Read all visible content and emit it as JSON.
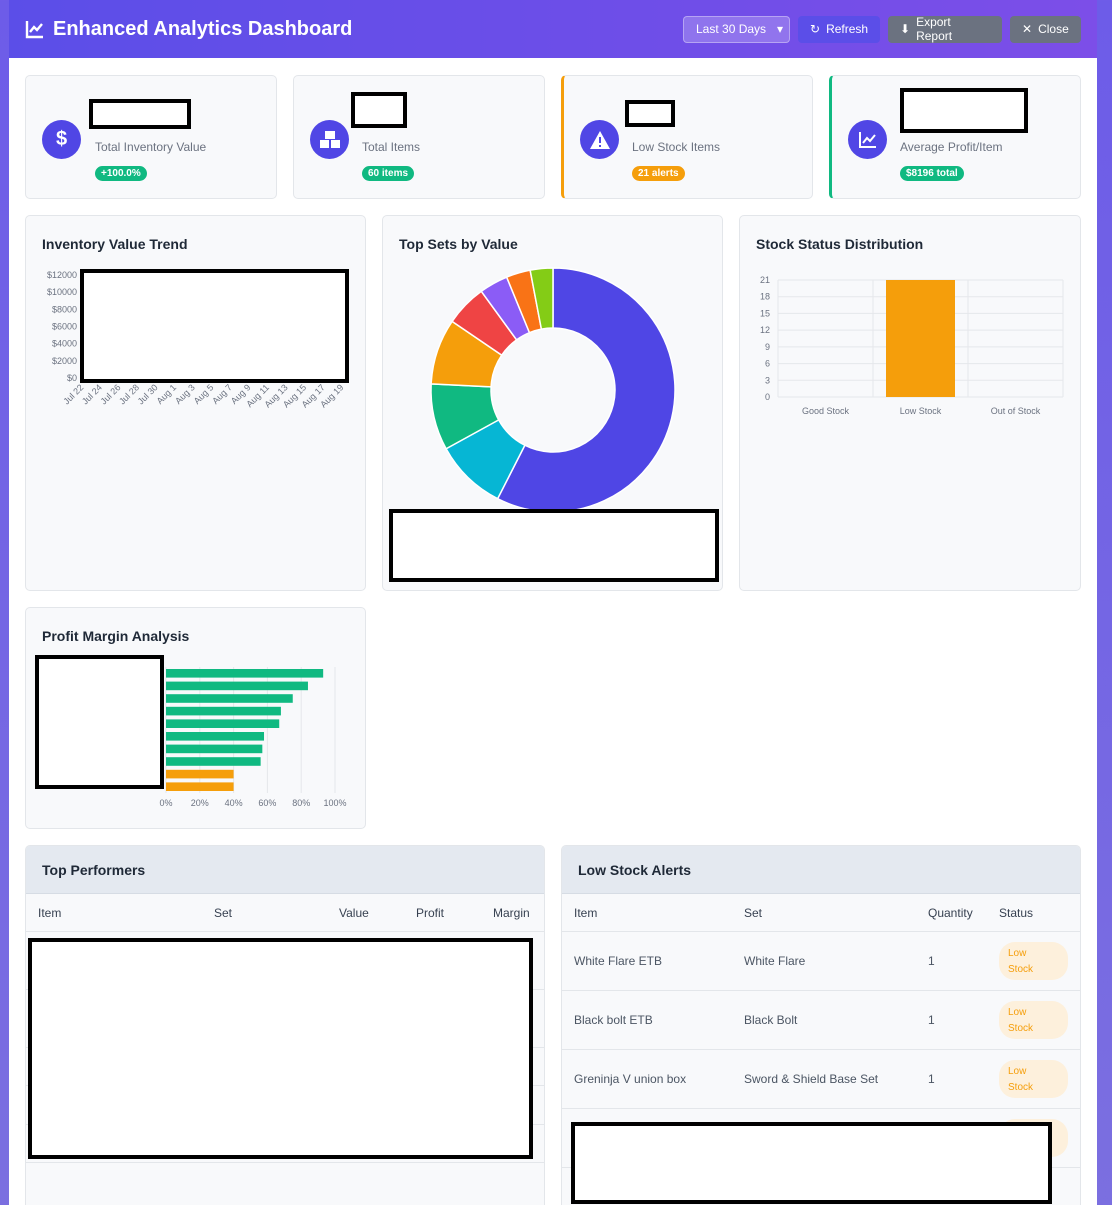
{
  "header": {
    "title": "Enhanced Analytics Dashboard",
    "range_select": "Last 30 Days",
    "refresh_label": "Refresh",
    "export_label": "Export Report",
    "close_label": "Close"
  },
  "stats": [
    {
      "label": "Total Inventory Value",
      "badge": "+100.0%",
      "icon": "dollar-icon"
    },
    {
      "label": "Total Items",
      "badge": "60 items",
      "icon": "boxes-icon"
    },
    {
      "label": "Low Stock Items",
      "badge": "21 alerts",
      "icon": "warning-icon"
    },
    {
      "label": "Average Profit/Item",
      "badge": "$8196 total",
      "icon": "chart-line-icon"
    }
  ],
  "colors": {
    "accent": "#5046e5",
    "green": "#10b981",
    "orange": "#f59e0b"
  },
  "chart_data": [
    {
      "type": "line",
      "title": "Inventory Value Trend",
      "y_ticks": [
        "$12000",
        "$10000",
        "$8000",
        "$6000",
        "$4000",
        "$2000",
        "$0"
      ],
      "ylim": [
        0,
        12000
      ],
      "categories": [
        "Jul 22",
        "Jul 24",
        "Jul 26",
        "Jul 28",
        "Jul 30",
        "Aug 1",
        "Aug 3",
        "Aug 5",
        "Aug 7",
        "Aug 9",
        "Aug 11",
        "Aug 13",
        "Aug 15",
        "Aug 17",
        "Aug 19"
      ]
    },
    {
      "type": "pie",
      "title": "Top Sets by Value",
      "slices": [
        {
          "value": 57.5,
          "color": "#4f46e5"
        },
        {
          "value": 9.5,
          "color": "#06b6d4"
        },
        {
          "value": 8.8,
          "color": "#10b981"
        },
        {
          "value": 8.7,
          "color": "#f59e0b"
        },
        {
          "value": 5.5,
          "color": "#ef4444"
        },
        {
          "value": 3.8,
          "color": "#8b5cf6"
        },
        {
          "value": 3.2,
          "color": "#f97316"
        },
        {
          "value": 3.0,
          "color": "#84cc16"
        }
      ]
    },
    {
      "type": "bar",
      "title": "Stock Status Distribution",
      "categories": [
        "Good Stock",
        "Low Stock",
        "Out of Stock"
      ],
      "values": [
        0,
        21,
        0
      ],
      "y_ticks": [
        "21",
        "18",
        "15",
        "12",
        "9",
        "6",
        "3",
        "0"
      ],
      "ylim": [
        0,
        21
      ],
      "bar_color": "#f59e0b"
    },
    {
      "type": "bar",
      "orientation": "horizontal",
      "title": "Profit Margin Analysis",
      "values": [
        93,
        84,
        75,
        68,
        67,
        58,
        57,
        56,
        40,
        40
      ],
      "x_ticks": [
        "0%",
        "20%",
        "40%",
        "60%",
        "80%",
        "100%"
      ],
      "xlim": [
        0,
        100
      ],
      "bar_colors": [
        "#10b981",
        "#10b981",
        "#10b981",
        "#10b981",
        "#10b981",
        "#10b981",
        "#10b981",
        "#10b981",
        "#f59e0b",
        "#f59e0b"
      ]
    }
  ],
  "top_performers": {
    "title": "Top Performers",
    "columns": [
      "Item",
      "Set",
      "Value",
      "Profit",
      "Margin"
    ]
  },
  "low_stock": {
    "title": "Low Stock Alerts",
    "columns": [
      "Item",
      "Set",
      "Quantity",
      "Status"
    ],
    "rows": [
      {
        "item": "White Flare ETB",
        "set": "White Flare",
        "qty": "1",
        "status_line1": "Low",
        "status_line2": "Stock"
      },
      {
        "item": "Black bolt ETB",
        "set": "Black Bolt",
        "qty": "1",
        "status_line1": "Low",
        "status_line2": "Stock"
      },
      {
        "item": "Greninja V union box",
        "set": "Sword & Shield Base Set",
        "qty": "1",
        "status_line1": "Low",
        "status_line2": "Stock"
      }
    ]
  }
}
